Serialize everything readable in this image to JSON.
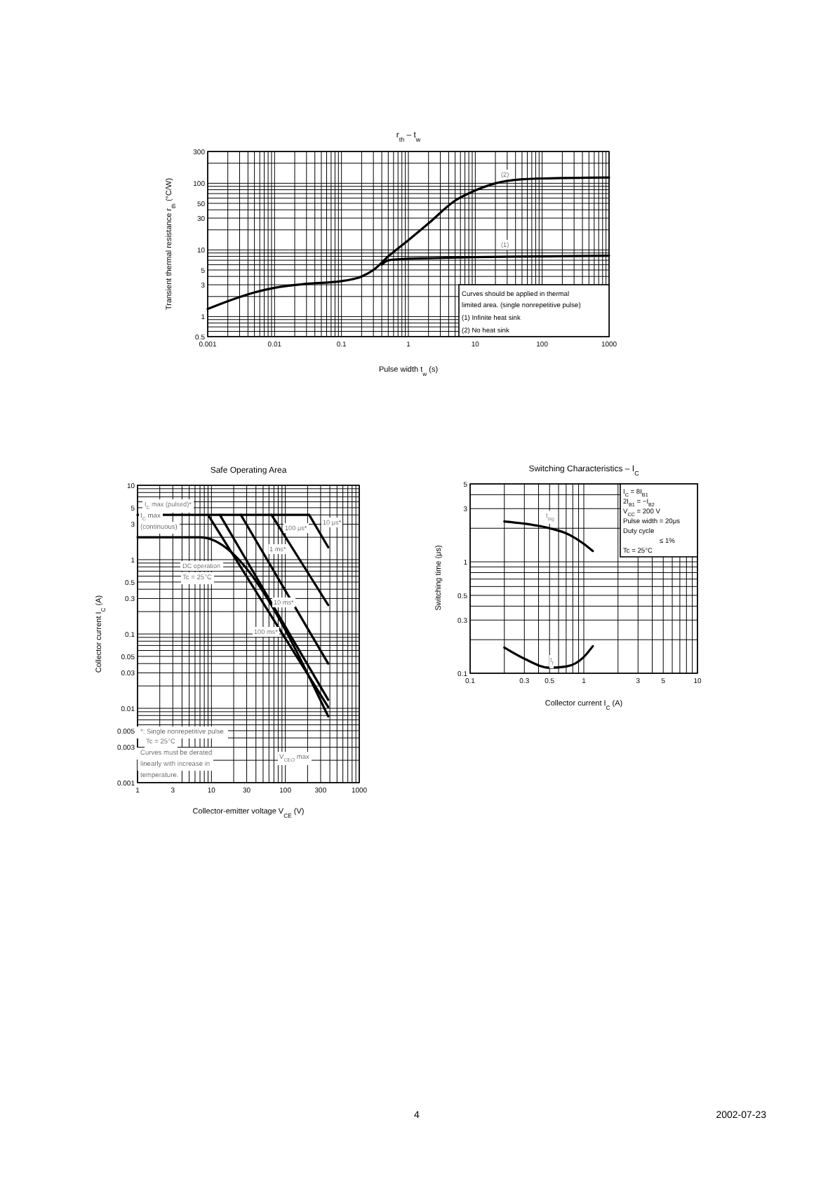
{
  "chart_data": [
    {
      "type": "line",
      "title": "r$_{th}$ – t$_{w}$",
      "xlabel": "Pulse width t$_{w}$ (s)",
      "ylabel": "Transient thermal resistance r$_{th}$ (°C/W)",
      "log": "xy",
      "grid": true,
      "xlim": [
        0.001,
        1000
      ],
      "xticks": [
        0.001,
        0.01,
        0.1,
        1,
        10,
        100,
        1000
      ],
      "ylim": [
        0.5,
        300
      ],
      "yticks": [
        0.5,
        1,
        3,
        5,
        10,
        30,
        50,
        100,
        300
      ],
      "series": [
        {
          "name": "(1)",
          "color": "#000000",
          "x": [
            0.4,
            0.5,
            1,
            2,
            10,
            100,
            1000
          ],
          "values": [
            6,
            7,
            7.4,
            7.5,
            7.8,
            8,
            8.2
          ]
        },
        {
          "name": "(2)",
          "color": "#000000",
          "x": [
            0.001,
            0.002,
            0.005,
            0.01,
            0.03,
            0.1,
            0.2,
            0.3,
            0.5,
            1,
            2,
            5,
            10,
            20,
            50,
            100,
            1000
          ],
          "values": [
            1.3,
            1.7,
            2.3,
            2.7,
            3.1,
            3.4,
            4,
            5,
            8,
            14,
            25,
            55,
            78,
            100,
            115,
            118,
            122
          ]
        }
      ],
      "annotations": [
        "Curves should be applied in thermal",
        "limited area. (single nonrepetitive pulse)",
        "(1) Infinite heat sink",
        "(2) No heat sink",
        "4",
        "2002-07-23"
      ]
    },
    {
      "type": "line",
      "title": "Safe Operating Area",
      "xlabel": "Collector-emitter voltage V$_{CE}$ (V)",
      "ylabel": "Collector current I$_{C}$ (A)",
      "log": "xy",
      "grid": true,
      "xlim": [
        1,
        1000
      ],
      "xticks": [
        1,
        3,
        10,
        30,
        100,
        300,
        1000
      ],
      "ylim": [
        0.001,
        10
      ],
      "yticks": [
        0.001,
        0.003,
        0.005,
        0.01,
        0.03,
        0.05,
        0.1,
        0.3,
        0.5,
        1,
        3,
        5,
        10
      ],
      "series": [
        {
          "name": "I$_{C}$ max (pulsed)*",
          "color": "#000000",
          "x": [
            1,
            210
          ],
          "values": [
            4,
            4
          ]
        },
        {
          "name": "DC operation",
          "color": "#000000",
          "x": [
            1,
            7,
            380
          ],
          "values": [
            2,
            2,
            0.0078
          ]
        },
        {
          "name": "10 ms*",
          "color": "#000000",
          "x": [
            13,
            380
          ],
          "values": [
            4,
            0.013
          ]
        },
        {
          "name": "100 ms*",
          "color": "#000000",
          "x": [
            9,
            380
          ],
          "values": [
            4,
            0.0104
          ]
        },
        {
          "name": "1 ms*",
          "color": "#000000",
          "x": [
            25,
            380
          ],
          "values": [
            4,
            0.04
          ]
        },
        {
          "name": "100 μs*",
          "color": "#000000",
          "x": [
            65,
            380
          ],
          "values": [
            4,
            0.245
          ]
        },
        {
          "name": "10 μs*",
          "color": "#000000",
          "x": [
            210,
            380
          ],
          "values": [
            4,
            1.47
          ]
        }
      ],
      "annotations": [
        "I$_{C}$ max",
        "(continuous)",
        "Tc = 25°C",
        "*: Single nonrepetitive pulse",
        "Tc = 25°C",
        "Curves must be derated",
        "linearly with increase in",
        "temperature.",
        "V$_{CEO}$ max"
      ]
    },
    {
      "type": "line",
      "title": "Switching Characteristics – I$_{C}$",
      "xlabel": "Collector current I$_{C}$ (A)",
      "ylabel": "Switching time (μs)",
      "log": "xy",
      "grid": true,
      "xlim": [
        0.1,
        10
      ],
      "xticks": [
        0.1,
        0.3,
        0.5,
        1,
        3,
        5,
        10
      ],
      "ylim": [
        0.1,
        5
      ],
      "yticks": [
        0.1,
        0.3,
        0.5,
        1,
        3,
        5
      ],
      "series": [
        {
          "name": "t$_{stg}$",
          "color": "#000000",
          "x": [
            0.2,
            0.3,
            0.5,
            0.7,
            1,
            1.2
          ],
          "values": [
            2.3,
            2.2,
            2.0,
            1.8,
            1.45,
            1.25
          ]
        },
        {
          "name": "t$_{f}$",
          "color": "#000000",
          "x": [
            0.2,
            0.3,
            0.5,
            0.7,
            1,
            1.2
          ],
          "values": [
            0.17,
            0.135,
            0.112,
            0.115,
            0.14,
            0.175
          ]
        }
      ],
      "annotations": [
        "I$_{C}$ = 8I$_{B1}$",
        "2I$_{B1}$ = −I$_{B2}$",
        "V$_{CC}$ = 200 V",
        "Pulse width = 20μs",
        "Duty cycle",
        "≤ 1%",
        "Tc = 25°C"
      ]
    }
  ]
}
